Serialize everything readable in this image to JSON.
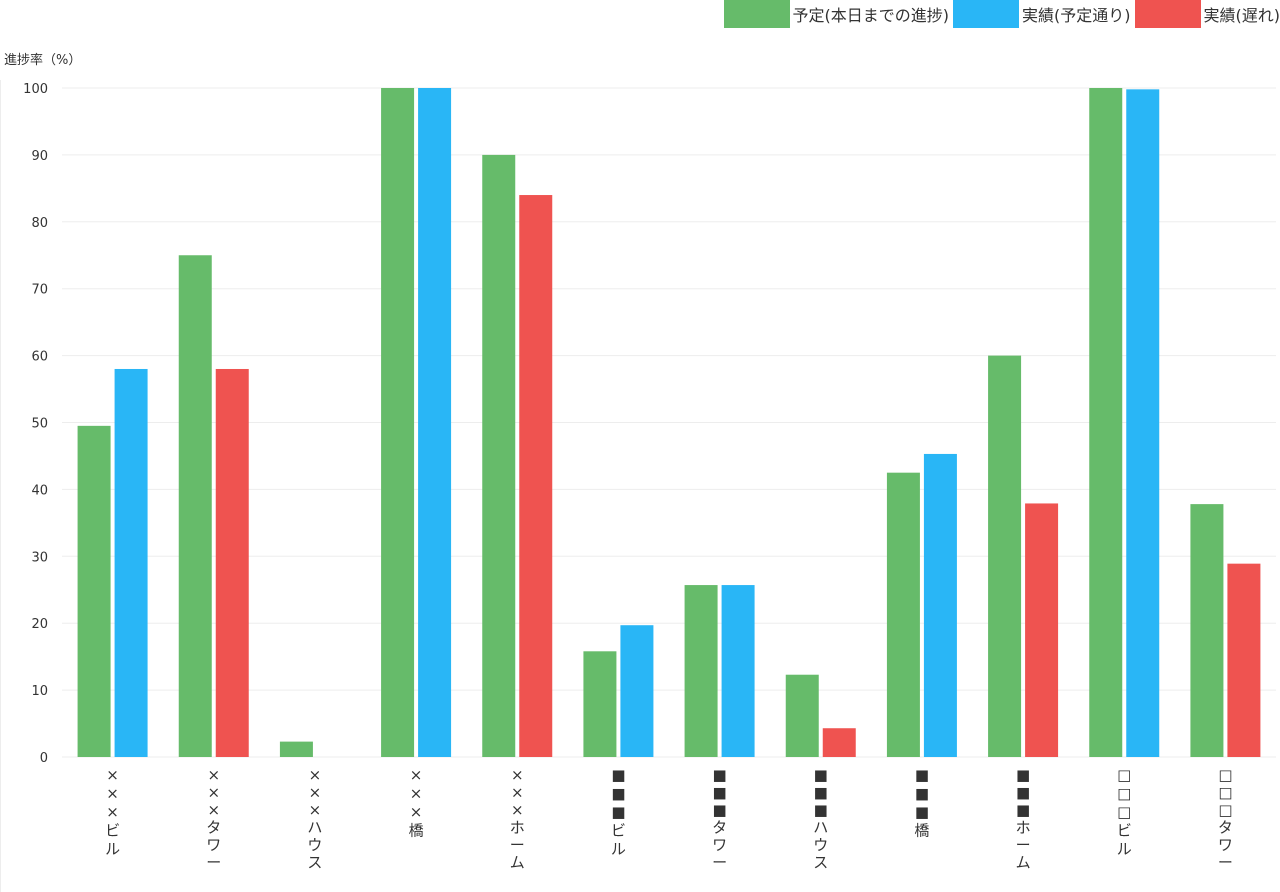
{
  "chart_data": {
    "type": "bar",
    "ylabel": "進捗率（%）",
    "ylim": [
      0,
      100
    ],
    "yticks": [
      0,
      10,
      20,
      30,
      40,
      50,
      60,
      70,
      80,
      90,
      100
    ],
    "grid": true,
    "legend_position": "top-right",
    "legend": [
      {
        "name": "予定(本日までの進捗)",
        "color": "#66bb6a"
      },
      {
        "name": "実績(予定通り)",
        "color": "#29b6f6"
      },
      {
        "name": "実績(遅れ)",
        "color": "#ef5350"
      }
    ],
    "categories": [
      "×××ビル",
      "×××タワー",
      "×××ハウス",
      "×××橋",
      "×××ホーム",
      "■■■ビル",
      "■■■タワー",
      "■■■ハウス",
      "■■■橋",
      "■■■ホーム",
      "□□□ビル",
      "□□□タワー"
    ],
    "series": [
      {
        "name": "予定(本日までの進捗)",
        "color": "#66bb6a",
        "values": [
          49.5,
          75,
          2.3,
          100,
          90,
          15.8,
          25.7,
          12.3,
          42.5,
          60,
          100,
          37.8
        ]
      },
      {
        "name": "実績",
        "color_on_time": "#29b6f6",
        "color_late": "#ef5350",
        "values": [
          58,
          58,
          0,
          100,
          84,
          19.7,
          25.7,
          4.3,
          45.3,
          37.9,
          99.8,
          28.9
        ],
        "status": [
          "on_time",
          "late",
          "none",
          "on_time",
          "late",
          "on_time",
          "on_time",
          "late",
          "on_time",
          "late",
          "on_time",
          "late"
        ]
      }
    ]
  }
}
